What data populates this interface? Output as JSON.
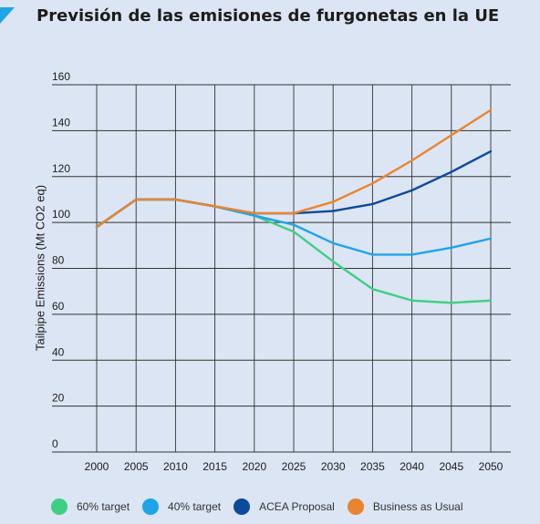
{
  "title": "Previsión de las emisiones de furgonetas en la UE",
  "chart_data": {
    "type": "line",
    "title": "Previsión de las emisiones de furgonetas en la UE",
    "xlabel": "",
    "ylabel": "Tailpipe Emissions (Mt CO2 eq)",
    "x": [
      2000,
      2005,
      2010,
      2015,
      2020,
      2025,
      2030,
      2035,
      2040,
      2045,
      2050
    ],
    "ylim": [
      0,
      160
    ],
    "yticks": [
      0,
      20,
      40,
      60,
      80,
      100,
      120,
      140,
      160
    ],
    "grid": true,
    "legend_position": "bottom",
    "series": [
      {
        "name": "60% target",
        "color": "#3ecf84",
        "values": [
          98,
          110,
          110,
          107,
          103,
          96,
          83,
          71,
          66,
          65,
          66
        ]
      },
      {
        "name": "40% target",
        "color": "#1ea4e8",
        "values": [
          98,
          110,
          110,
          107,
          103,
          99,
          91,
          86,
          86,
          89,
          93
        ]
      },
      {
        "name": "ACEA Proposal",
        "color": "#0c4a9c",
        "values": [
          98,
          110,
          110,
          107,
          104,
          104,
          105,
          108,
          114,
          122,
          131
        ]
      },
      {
        "name": "Business as Usual",
        "color": "#e9852f",
        "values": [
          98,
          110,
          110,
          107,
          104,
          104,
          109,
          117,
          127,
          138,
          149
        ]
      }
    ]
  }
}
